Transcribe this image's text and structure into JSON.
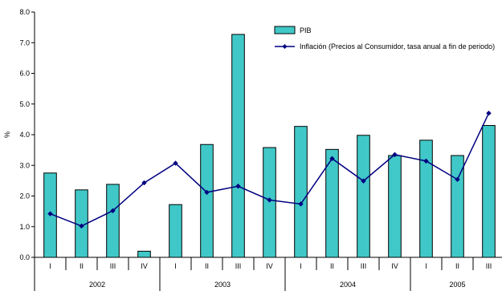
{
  "chart_data": {
    "type": "bar",
    "ylabel": "%",
    "ylim": [
      0,
      8
    ],
    "ytick_labels": [
      "0.0",
      "1.0",
      "2.0",
      "3.0",
      "4.0",
      "5.0",
      "6.0",
      "7.0",
      "8.0"
    ],
    "categories": [
      "I",
      "II",
      "III",
      "IV",
      "I",
      "II",
      "III",
      "IV",
      "I",
      "II",
      "III",
      "IV",
      "I",
      "II",
      "III"
    ],
    "years": [
      {
        "label": "2002",
        "quarters": 4
      },
      {
        "label": "2003",
        "quarters": 4
      },
      {
        "label": "2004",
        "quarters": 4
      },
      {
        "label": "2005",
        "quarters": 3
      }
    ],
    "series": [
      {
        "name": "PIB",
        "kind": "bar",
        "color": "#40C8C8",
        "values": [
          2.75,
          2.2,
          2.38,
          0.2,
          1.72,
          3.68,
          7.27,
          3.58,
          4.27,
          3.52,
          3.98,
          3.32,
          3.82,
          3.32,
          4.3
        ]
      },
      {
        "name": "Inflación (Precios al Consumidor, tasa anual a fin de periodo)",
        "kind": "line",
        "color": "#000080",
        "values": [
          1.42,
          1.02,
          1.52,
          2.43,
          3.07,
          2.12,
          2.32,
          1.87,
          1.74,
          3.22,
          2.49,
          3.35,
          3.14,
          2.54,
          4.7
        ]
      }
    ],
    "legend_position": "top-right",
    "grid": false
  }
}
